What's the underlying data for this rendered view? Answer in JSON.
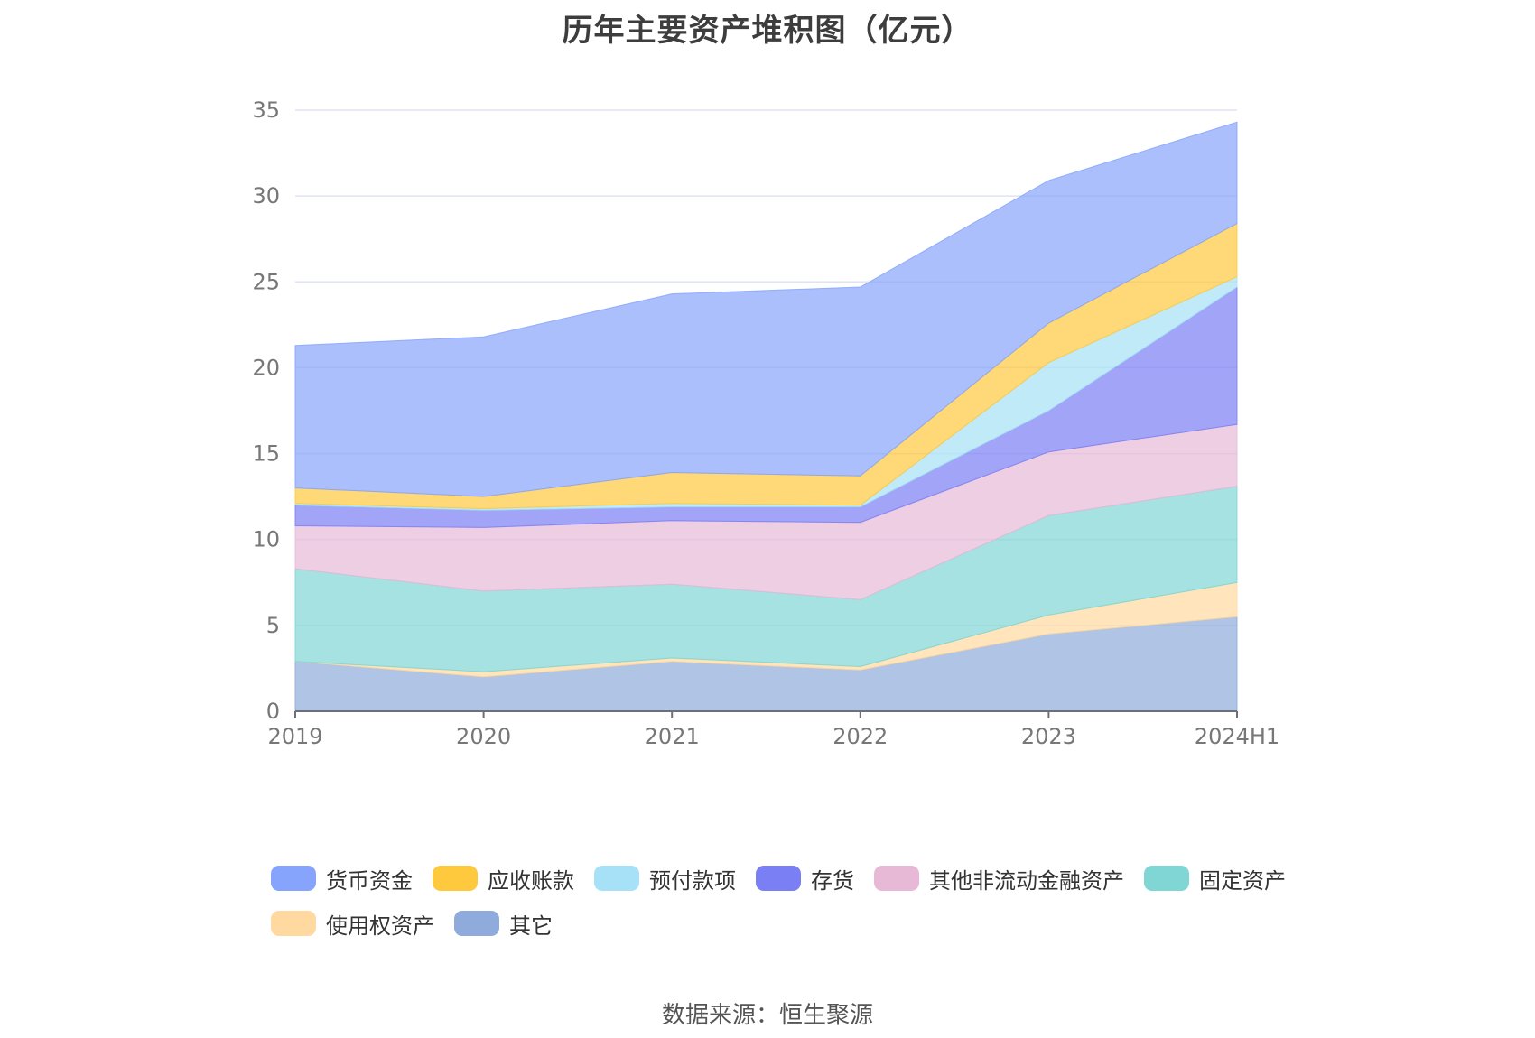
{
  "chart_data": {
    "type": "area",
    "title": "历年主要资产堆积图（亿元）",
    "stacked": true,
    "categories": [
      "2019",
      "2020",
      "2021",
      "2022",
      "2023",
      "2024H1"
    ],
    "ylim": [
      0,
      35
    ],
    "yticks": [
      0,
      5,
      10,
      15,
      20,
      25,
      30,
      35
    ],
    "grid": true,
    "legend_position": "bottom",
    "series": [
      {
        "name": "其它",
        "color": "#8eabdc",
        "values": [
          2.9,
          2.0,
          2.9,
          2.4,
          4.5,
          5.5
        ]
      },
      {
        "name": "使用权资产",
        "color": "#ffd9a0",
        "values": [
          0.0,
          0.3,
          0.2,
          0.2,
          1.1,
          2.0
        ]
      },
      {
        "name": "固定资产",
        "color": "#7fd6d4",
        "values": [
          5.4,
          4.7,
          4.3,
          3.9,
          5.8,
          5.6
        ]
      },
      {
        "name": "其他非流动金融资产",
        "color": "#e7b9d7",
        "values": [
          2.5,
          3.7,
          3.7,
          4.5,
          3.7,
          3.6
        ]
      },
      {
        "name": "存货",
        "color": "#7b7ff4",
        "values": [
          1.2,
          1.0,
          0.8,
          0.9,
          2.4,
          8.0
        ]
      },
      {
        "name": "预付款项",
        "color": "#a6e1f7",
        "values": [
          0.1,
          0.1,
          0.2,
          0.1,
          2.8,
          0.6
        ]
      },
      {
        "name": "应收账款",
        "color": "#ffc93d",
        "values": [
          0.9,
          0.7,
          1.8,
          1.7,
          2.3,
          3.1
        ]
      },
      {
        "name": "货币资金",
        "color": "#86a4fb",
        "values": [
          8.3,
          9.3,
          10.4,
          11.0,
          8.3,
          5.9
        ]
      }
    ]
  },
  "legend": {
    "items": [
      {
        "label": "货币资金",
        "color": "#86a4fb"
      },
      {
        "label": "应收账款",
        "color": "#ffc93d"
      },
      {
        "label": "预付款项",
        "color": "#a6e1f7"
      },
      {
        "label": "存货",
        "color": "#7b7ff4"
      },
      {
        "label": "其他非流动金融资产",
        "color": "#e7b9d7"
      },
      {
        "label": "固定资产",
        "color": "#7fd6d4"
      },
      {
        "label": "使用权资产",
        "color": "#ffd9a0"
      },
      {
        "label": "其它",
        "color": "#8eabdc"
      }
    ]
  },
  "footer": {
    "source": "数据来源：恒生聚源"
  }
}
